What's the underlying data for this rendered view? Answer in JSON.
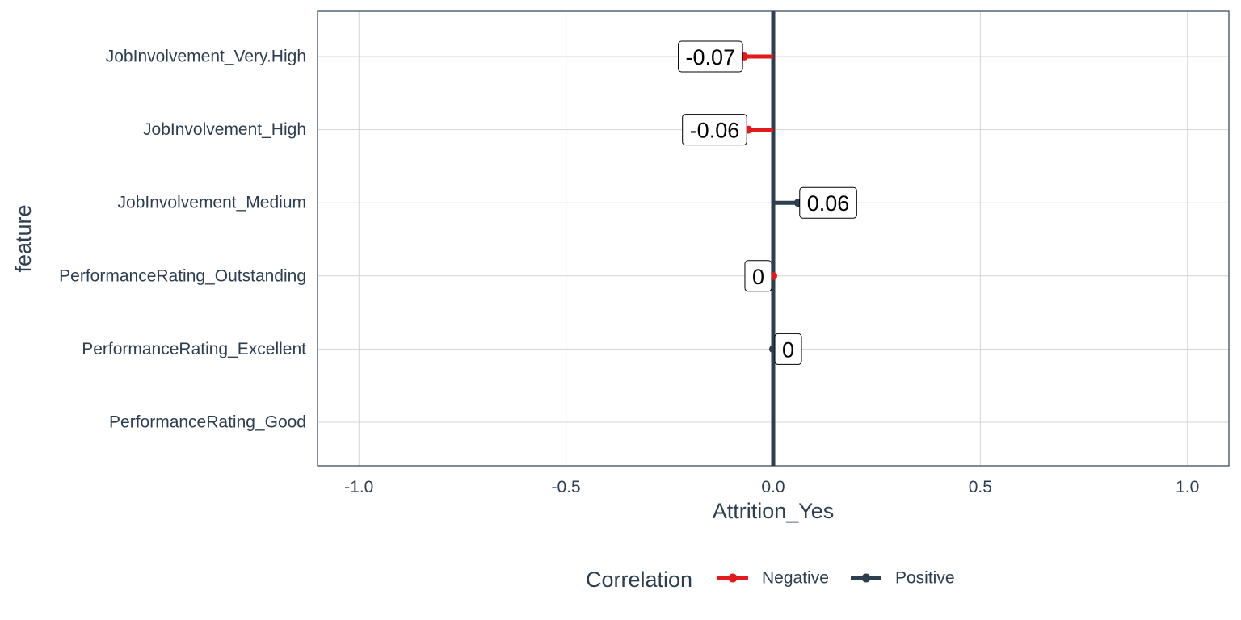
{
  "chart_data": {
    "type": "lollipop",
    "title": "",
    "xlabel": "Attrition_Yes",
    "ylabel": "feature",
    "xlim": [
      -1.1,
      1.1
    ],
    "x_ticks": [
      -1.0,
      -0.5,
      0.0,
      0.5,
      1.0
    ],
    "x_tick_labels": [
      "-1.0",
      "-0.5",
      "0.0",
      "0.5",
      "1.0"
    ],
    "grid": true,
    "legend": {
      "title": "Correlation",
      "placement": "bottom",
      "entries": [
        {
          "name": "Negative",
          "color": "#e31a1c"
        },
        {
          "name": "Positive",
          "color": "#2c3e50"
        }
      ]
    },
    "categories": [
      "JobInvolvement_Very.High",
      "JobInvolvement_High",
      "JobInvolvement_Medium",
      "PerformanceRating_Outstanding",
      "PerformanceRating_Excellent",
      "PerformanceRating_Good"
    ],
    "values": [
      -0.07,
      -0.06,
      0.06,
      0.0,
      0.0,
      null
    ],
    "series_membership": [
      "Negative",
      "Negative",
      "Positive",
      "Negative",
      "Positive",
      null
    ],
    "data_labels": [
      "-0.07",
      "-0.06",
      "0.06",
      "0",
      "0",
      ""
    ]
  }
}
